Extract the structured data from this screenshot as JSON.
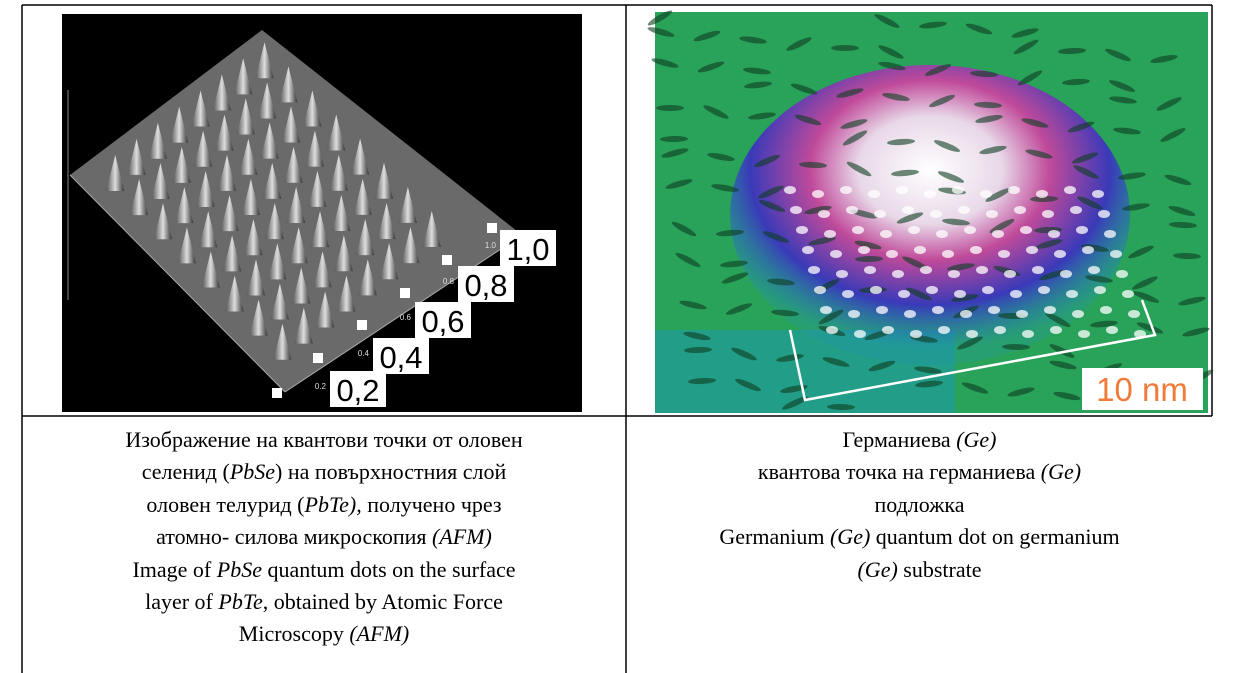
{
  "left_image": {
    "scale_labels": [
      "0,2",
      "0,4",
      "0,6",
      "0,8",
      "1,0"
    ],
    "small_labels": [
      "0.2",
      "0.4",
      "0.6",
      "0.8",
      "1.0"
    ]
  },
  "right_image": {
    "scale_label": "10 nm"
  },
  "caption_left": {
    "lines": [
      [
        {
          "text": "Изображение на квантови точки от оловен",
          "italic": false
        }
      ],
      [
        {
          "text": "селенид (",
          "italic": false
        },
        {
          "text": "PbSe",
          "italic": true
        },
        {
          "text": ") на повърхностния слой",
          "italic": false
        }
      ],
      [
        {
          "text": "оловен телурид (",
          "italic": false
        },
        {
          "text": "PbTe),",
          "italic": true
        },
        {
          "text": " получено чрез",
          "italic": false
        }
      ],
      [
        {
          "text": "атомно- силова микроскопия ",
          "italic": false
        },
        {
          "text": "(AFM)",
          "italic": true
        }
      ],
      [
        {
          "text": "Image of ",
          "italic": false
        },
        {
          "text": "PbSe",
          "italic": true
        },
        {
          "text": " quantum dots on the surface",
          "italic": false
        }
      ],
      [
        {
          "text": "layer of ",
          "italic": false
        },
        {
          "text": "PbTe",
          "italic": true
        },
        {
          "text": ", obtained by Atomic Force",
          "italic": false
        }
      ],
      [
        {
          "text": "Microscopy ",
          "italic": false
        },
        {
          "text": "(AFM)",
          "italic": true
        }
      ]
    ]
  },
  "caption_right": {
    "lines": [
      [
        {
          "text": "Германиева ",
          "italic": false
        },
        {
          "text": "(Ge)",
          "italic": true
        }
      ],
      [
        {
          "text": "квантова точка на германиева ",
          "italic": false
        },
        {
          "text": "(Ge)",
          "italic": true
        }
      ],
      [
        {
          "text": "подложка",
          "italic": false
        }
      ],
      [
        {
          "text": "Germanium ",
          "italic": false
        },
        {
          "text": "(Ge)",
          "italic": true
        },
        {
          "text": " quantum dot on germanium",
          "italic": false
        }
      ],
      [
        {
          "text": "(Ge)",
          "italic": true
        },
        {
          "text": " substrate",
          "italic": false
        }
      ]
    ]
  }
}
